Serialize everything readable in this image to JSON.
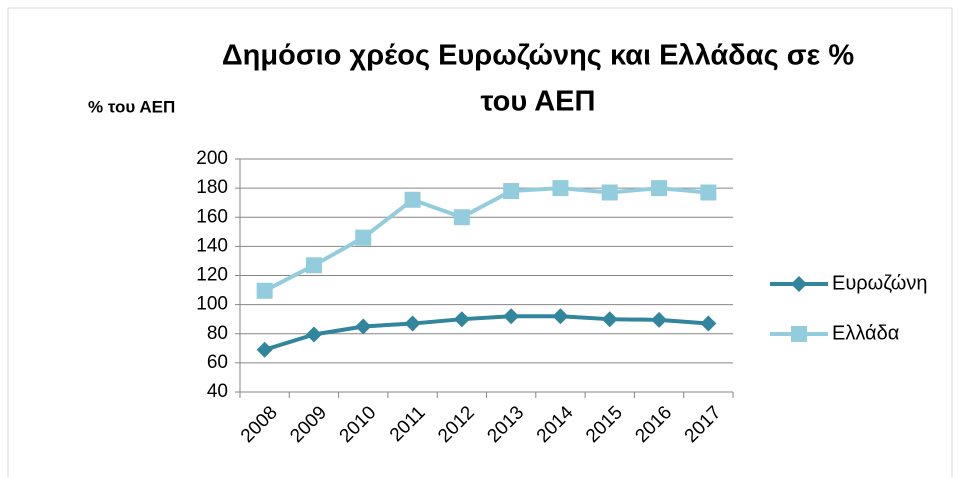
{
  "chart_data": {
    "type": "line",
    "title": "Δημόσιο χρέος Ευρωζώνης και Ελλάδας σε % του ΑΕΠ",
    "title_lines": [
      "Δημόσιο χρέος Ευρωζώνης και Ελλάδας σε %",
      "του ΑΕΠ"
    ],
    "y_label": "% του ΑΕΠ",
    "categories": [
      "2008",
      "2009",
      "2010",
      "2011",
      "2012",
      "2013",
      "2014",
      "2015",
      "2016",
      "2017"
    ],
    "series": [
      {
        "name": "Ευρωζώνη",
        "color": "#31859c",
        "marker": "diamond",
        "values": [
          69,
          79.5,
          85,
          87,
          90,
          92,
          92,
          90,
          89.5,
          87
        ]
      },
      {
        "name": "Ελλάδα",
        "color": "#93cddd",
        "marker": "square",
        "values": [
          109.5,
          127,
          146,
          172,
          160,
          178,
          180,
          177,
          180,
          177
        ]
      }
    ],
    "ylim": [
      40,
      200
    ],
    "yticks": [
      40,
      60,
      80,
      100,
      120,
      140,
      160,
      180,
      200
    ],
    "grid": true,
    "legend": "right"
  }
}
